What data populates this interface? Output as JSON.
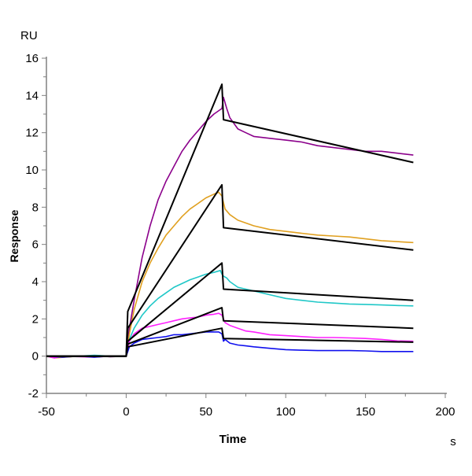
{
  "chart_data": {
    "type": "line",
    "title": "",
    "xlabel": "Time",
    "x_unit": "s",
    "ylabel": "Response",
    "y_unit": "RU",
    "xlim": [
      -50,
      200
    ],
    "ylim": [
      -2,
      16
    ],
    "x_ticks": [
      -50,
      0,
      50,
      100,
      150,
      200
    ],
    "y_ticks": [
      -2,
      0,
      2,
      4,
      6,
      8,
      10,
      12,
      14,
      16
    ],
    "grid": false,
    "legend": "none",
    "series": [
      {
        "color": "#8b008b",
        "kind": "measured",
        "points": [
          [
            -50,
            0
          ],
          [
            -40,
            -0.05
          ],
          [
            -30,
            0
          ],
          [
            -20,
            0.02
          ],
          [
            -10,
            -0.03
          ],
          [
            0,
            0
          ],
          [
            2,
            1.5
          ],
          [
            5,
            3.0
          ],
          [
            10,
            5.3
          ],
          [
            15,
            7.0
          ],
          [
            20,
            8.4
          ],
          [
            25,
            9.4
          ],
          [
            30,
            10.2
          ],
          [
            35,
            11.0
          ],
          [
            40,
            11.6
          ],
          [
            45,
            12.1
          ],
          [
            50,
            12.6
          ],
          [
            55,
            13.0
          ],
          [
            60,
            13.3
          ],
          [
            61,
            13.9
          ],
          [
            63,
            13.3
          ],
          [
            65,
            12.8
          ],
          [
            70,
            12.2
          ],
          [
            75,
            12.0
          ],
          [
            80,
            11.8
          ],
          [
            90,
            11.7
          ],
          [
            100,
            11.6
          ],
          [
            110,
            11.5
          ],
          [
            120,
            11.3
          ],
          [
            130,
            11.2
          ],
          [
            140,
            11.1
          ],
          [
            150,
            11.0
          ],
          [
            160,
            11.0
          ],
          [
            170,
            10.9
          ],
          [
            180,
            10.8
          ]
        ]
      },
      {
        "color": "#e0a020",
        "kind": "measured",
        "points": [
          [
            -50,
            0
          ],
          [
            -45,
            -0.1
          ],
          [
            -30,
            0
          ],
          [
            -20,
            0
          ],
          [
            -10,
            0
          ],
          [
            0,
            0
          ],
          [
            2,
            1.2
          ],
          [
            5,
            2.5
          ],
          [
            10,
            4.0
          ],
          [
            15,
            5.0
          ],
          [
            20,
            5.8
          ],
          [
            25,
            6.5
          ],
          [
            30,
            7.0
          ],
          [
            35,
            7.5
          ],
          [
            40,
            7.9
          ],
          [
            45,
            8.2
          ],
          [
            50,
            8.5
          ],
          [
            55,
            8.7
          ],
          [
            58,
            8.8
          ],
          [
            60,
            8.6
          ],
          [
            62,
            7.9
          ],
          [
            65,
            7.6
          ],
          [
            70,
            7.3
          ],
          [
            80,
            7.0
          ],
          [
            90,
            6.8
          ],
          [
            100,
            6.7
          ],
          [
            110,
            6.6
          ],
          [
            120,
            6.5
          ],
          [
            130,
            6.45
          ],
          [
            140,
            6.4
          ],
          [
            150,
            6.3
          ],
          [
            160,
            6.2
          ],
          [
            170,
            6.15
          ],
          [
            180,
            6.1
          ]
        ]
      },
      {
        "color": "#20c8c8",
        "kind": "measured",
        "points": [
          [
            -50,
            0
          ],
          [
            -30,
            0
          ],
          [
            -20,
            0.05
          ],
          [
            -10,
            0
          ],
          [
            0,
            0
          ],
          [
            2,
            0.9
          ],
          [
            5,
            1.5
          ],
          [
            10,
            2.2
          ],
          [
            15,
            2.7
          ],
          [
            20,
            3.1
          ],
          [
            25,
            3.4
          ],
          [
            30,
            3.7
          ],
          [
            35,
            3.9
          ],
          [
            40,
            4.1
          ],
          [
            45,
            4.25
          ],
          [
            50,
            4.4
          ],
          [
            55,
            4.5
          ],
          [
            59,
            4.6
          ],
          [
            60,
            4.4
          ],
          [
            61,
            4.3
          ],
          [
            63,
            4.2
          ],
          [
            65,
            4.0
          ],
          [
            70,
            3.7
          ],
          [
            75,
            3.6
          ],
          [
            80,
            3.5
          ],
          [
            90,
            3.3
          ],
          [
            100,
            3.1
          ],
          [
            110,
            3.0
          ],
          [
            120,
            2.9
          ],
          [
            130,
            2.85
          ],
          [
            140,
            2.8
          ],
          [
            150,
            2.78
          ],
          [
            160,
            2.75
          ],
          [
            170,
            2.72
          ],
          [
            180,
            2.7
          ]
        ]
      },
      {
        "color": "#ff20ff",
        "kind": "measured",
        "points": [
          [
            -50,
            0
          ],
          [
            -45,
            -0.1
          ],
          [
            -40,
            0
          ],
          [
            -20,
            -0.05
          ],
          [
            -10,
            0
          ],
          [
            0,
            0
          ],
          [
            2,
            0.8
          ],
          [
            5,
            1.2
          ],
          [
            10,
            1.5
          ],
          [
            15,
            1.6
          ],
          [
            20,
            1.7
          ],
          [
            25,
            1.8
          ],
          [
            30,
            1.9
          ],
          [
            35,
            2.0
          ],
          [
            40,
            2.05
          ],
          [
            45,
            2.1
          ],
          [
            50,
            2.2
          ],
          [
            55,
            2.25
          ],
          [
            58,
            2.3
          ],
          [
            60,
            2.2
          ],
          [
            62,
            1.8
          ],
          [
            65,
            1.65
          ],
          [
            70,
            1.5
          ],
          [
            75,
            1.35
          ],
          [
            80,
            1.3
          ],
          [
            90,
            1.15
          ],
          [
            100,
            1.1
          ],
          [
            110,
            1.05
          ],
          [
            120,
            1.0
          ],
          [
            130,
            1.0
          ],
          [
            140,
            0.98
          ],
          [
            150,
            0.95
          ],
          [
            160,
            0.9
          ],
          [
            170,
            0.82
          ],
          [
            180,
            0.8
          ]
        ]
      },
      {
        "color": "#1010ee",
        "kind": "measured",
        "points": [
          [
            -50,
            0
          ],
          [
            -40,
            -0.05
          ],
          [
            -30,
            0
          ],
          [
            -20,
            -0.05
          ],
          [
            -10,
            0
          ],
          [
            0,
            0
          ],
          [
            2,
            0.5
          ],
          [
            5,
            0.7
          ],
          [
            10,
            0.9
          ],
          [
            15,
            0.95
          ],
          [
            20,
            1.0
          ],
          [
            25,
            1.05
          ],
          [
            30,
            1.15
          ],
          [
            35,
            1.15
          ],
          [
            40,
            1.2
          ],
          [
            45,
            1.25
          ],
          [
            50,
            1.3
          ],
          [
            55,
            1.3
          ],
          [
            58,
            1.3
          ],
          [
            60,
            1.2
          ],
          [
            61,
            0.8
          ],
          [
            62,
            0.9
          ],
          [
            65,
            0.7
          ],
          [
            70,
            0.6
          ],
          [
            75,
            0.55
          ],
          [
            80,
            0.5
          ],
          [
            90,
            0.42
          ],
          [
            100,
            0.35
          ],
          [
            110,
            0.32
          ],
          [
            120,
            0.3
          ],
          [
            130,
            0.3
          ],
          [
            140,
            0.3
          ],
          [
            150,
            0.28
          ],
          [
            160,
            0.25
          ],
          [
            170,
            0.25
          ],
          [
            180,
            0.25
          ]
        ]
      },
      {
        "color": "#000000",
        "kind": "fit",
        "points": [
          [
            -50,
            0
          ],
          [
            0,
            0
          ],
          [
            1,
            2.4
          ],
          [
            60,
            14.6
          ],
          [
            61,
            12.7
          ],
          [
            180,
            10.4
          ]
        ]
      },
      {
        "color": "#000000",
        "kind": "fit",
        "points": [
          [
            -50,
            0
          ],
          [
            0,
            0
          ],
          [
            1,
            1.5
          ],
          [
            60,
            9.2
          ],
          [
            61,
            6.9
          ],
          [
            180,
            5.7
          ]
        ]
      },
      {
        "color": "#000000",
        "kind": "fit",
        "points": [
          [
            -50,
            0
          ],
          [
            0,
            0
          ],
          [
            1,
            0.8
          ],
          [
            60,
            5.0
          ],
          [
            61,
            3.6
          ],
          [
            180,
            3.0
          ]
        ]
      },
      {
        "color": "#000000",
        "kind": "fit",
        "points": [
          [
            -50,
            0
          ],
          [
            0,
            0
          ],
          [
            1,
            0.65
          ],
          [
            60,
            2.6
          ],
          [
            61,
            1.9
          ],
          [
            180,
            1.5
          ]
        ]
      },
      {
        "color": "#000000",
        "kind": "fit",
        "points": [
          [
            -50,
            0
          ],
          [
            0,
            0
          ],
          [
            1,
            0.5
          ],
          [
            60,
            1.5
          ],
          [
            61,
            0.95
          ],
          [
            180,
            0.75
          ]
        ]
      }
    ]
  }
}
